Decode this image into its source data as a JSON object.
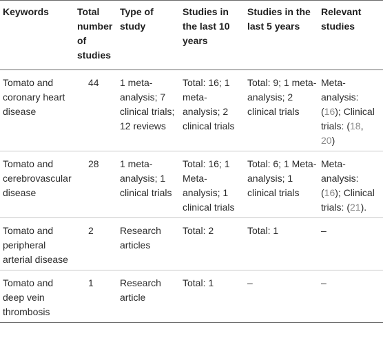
{
  "headers": [
    "Keywords",
    "Total number of studies",
    "Type of study",
    "Studies in the last 10 years",
    "Studies in the last 5 years",
    "Relevant studies"
  ],
  "rows": [
    {
      "keywords": "Tomato and coronary heart disease",
      "total": "44",
      "type": "1 meta-analysis; 7 clinical trials; 12 reviews",
      "last10": "Total: 16; 1 meta-analysis; 2 clinical trials",
      "last5": "Total: 9; 1 meta-analysis; 2 clinical trials",
      "relevant": {
        "meta_label": "Meta-analysis: (",
        "meta_ref": "16",
        "clin_label": "); Clinical trials: (",
        "clin_ref1": "18",
        "sep": ", ",
        "clin_ref2": "20",
        "end": ")"
      }
    },
    {
      "keywords": "Tomato and cerebrovascular disease",
      "total": "28",
      "type": "1 meta-analysis; 1 clinical trials",
      "last10": "Total: 16; 1 Meta-analysis; 1 clinical trials",
      "last5": "Total: 6; 1 Meta-analysis; 1 clinical trials",
      "relevant": {
        "meta_label": "Meta-analysis: (",
        "meta_ref": "16",
        "clin_label": "); Clinical trials: (",
        "clin_ref": "21",
        "end": ")."
      }
    },
    {
      "keywords": "Tomato and peripheral arterial disease",
      "total": "2",
      "type": "Research articles",
      "last10": "Total: 2",
      "last5": "Total: 1",
      "relevant": "–"
    },
    {
      "keywords": "Tomato and deep vein thrombosis",
      "total": "1",
      "type": "Research article",
      "last10": "Total: 1",
      "last5": "–",
      "relevant": "–"
    }
  ]
}
